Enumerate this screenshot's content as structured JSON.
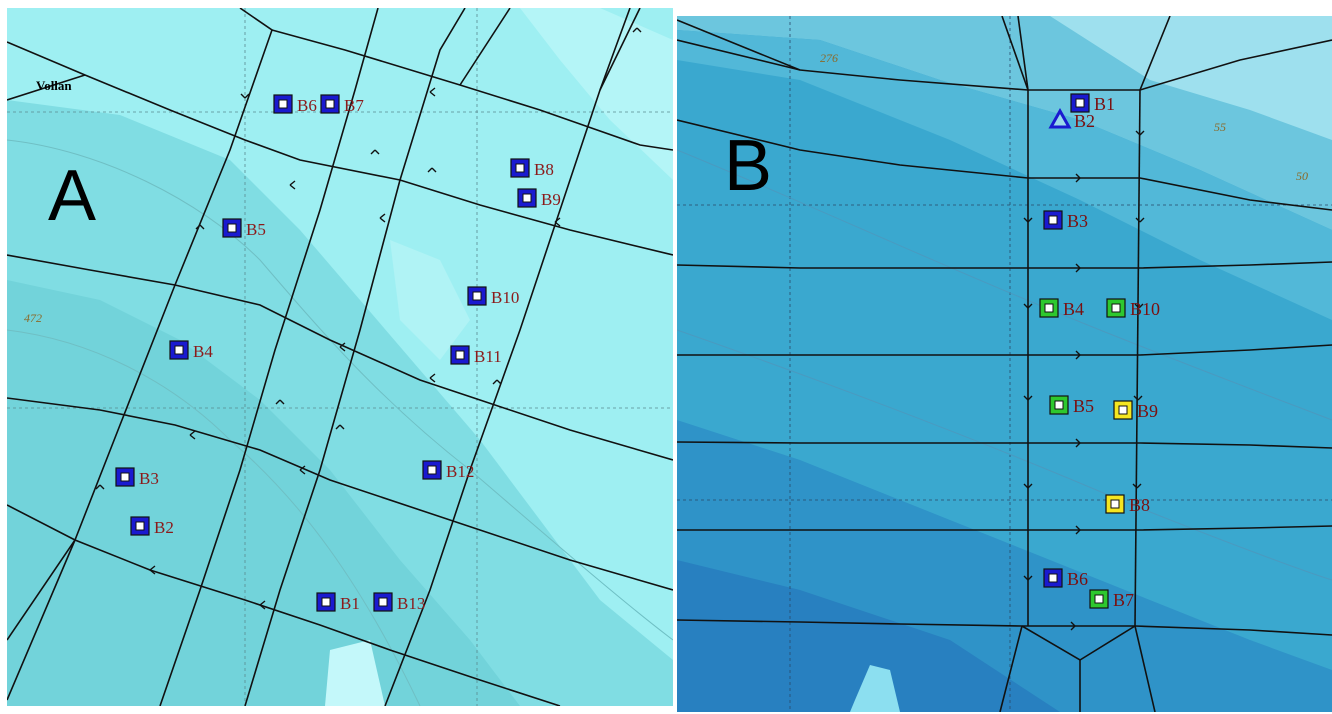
{
  "panels": {
    "a": {
      "letter": "A",
      "place_label": "Vollan",
      "contour_label": "472",
      "markers": [
        {
          "id": "B1",
          "type": "square",
          "color": "blue"
        },
        {
          "id": "B2",
          "type": "square",
          "color": "blue"
        },
        {
          "id": "B3",
          "type": "square",
          "color": "blue"
        },
        {
          "id": "B4",
          "type": "square",
          "color": "blue"
        },
        {
          "id": "B5",
          "type": "square",
          "color": "blue"
        },
        {
          "id": "B6",
          "type": "square",
          "color": "blue"
        },
        {
          "id": "B7",
          "type": "square",
          "color": "blue"
        },
        {
          "id": "B8",
          "type": "square",
          "color": "blue"
        },
        {
          "id": "B9",
          "type": "square",
          "color": "blue"
        },
        {
          "id": "B10",
          "type": "square",
          "color": "blue"
        },
        {
          "id": "B11",
          "type": "square",
          "color": "blue"
        },
        {
          "id": "B12",
          "type": "square",
          "color": "blue"
        },
        {
          "id": "B13",
          "type": "square",
          "color": "blue"
        }
      ]
    },
    "b": {
      "letter": "B",
      "contour_labels": [
        "276",
        "55",
        "50"
      ],
      "markers": [
        {
          "id": "B1",
          "type": "square",
          "color": "blue"
        },
        {
          "id": "B2",
          "type": "triangle",
          "color": "blue"
        },
        {
          "id": "B3",
          "type": "square",
          "color": "blue"
        },
        {
          "id": "B4",
          "type": "square",
          "color": "green"
        },
        {
          "id": "B10",
          "type": "square",
          "color": "green"
        },
        {
          "id": "B5",
          "type": "square",
          "color": "green"
        },
        {
          "id": "B9",
          "type": "square",
          "color": "yellow"
        },
        {
          "id": "B8",
          "type": "square",
          "color": "yellow"
        },
        {
          "id": "B6",
          "type": "square",
          "color": "blue"
        },
        {
          "id": "B7",
          "type": "square",
          "color": "green"
        }
      ]
    }
  },
  "colors": {
    "blue": "#1a1ad0",
    "green": "#2ec82e",
    "yellow": "#f5e620",
    "network_line": "#111111"
  }
}
